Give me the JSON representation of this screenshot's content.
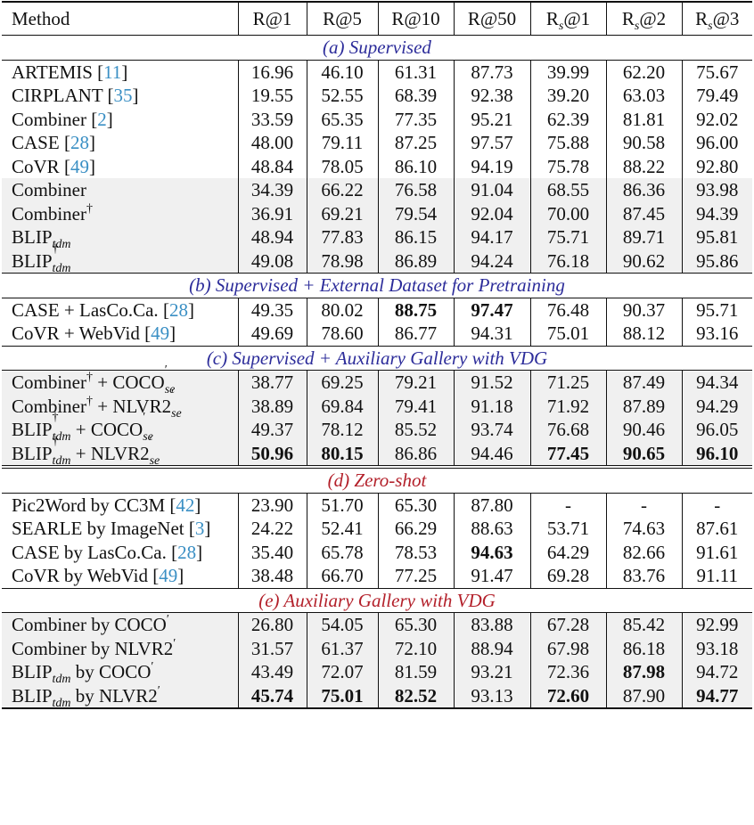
{
  "headers": [
    "Method",
    "R@1",
    "R@5",
    "R@10",
    "R@50",
    "R",
    "R",
    "R"
  ],
  "header_subs": [
    "s",
    "s",
    "s"
  ],
  "header_tail": [
    "@1",
    "@2",
    "@3"
  ],
  "sections": [
    {
      "title": "(a) Supervised",
      "color": "#2c2c9a",
      "rows": [
        {
          "method": "ARTEMIS",
          "ref": "11",
          "values": [
            "16.96",
            "46.10",
            "61.31",
            "87.73",
            "39.99",
            "62.20",
            "75.67"
          ],
          "bold": []
        },
        {
          "method": "CIRPLANT",
          "ref": "35",
          "values": [
            "19.55",
            "52.55",
            "68.39",
            "92.38",
            "39.20",
            "63.03",
            "79.49"
          ],
          "bold": []
        },
        {
          "method": "Combiner",
          "ref": "2",
          "values": [
            "33.59",
            "65.35",
            "77.35",
            "95.21",
            "62.39",
            "81.81",
            "92.02"
          ],
          "bold": []
        },
        {
          "method": "CASE",
          "ref": "28",
          "values": [
            "48.00",
            "79.11",
            "87.25",
            "97.57",
            "75.88",
            "90.58",
            "96.00"
          ],
          "bold": []
        },
        {
          "method": "CoVR",
          "ref": "49",
          "values": [
            "48.84",
            "78.05",
            "86.10",
            "94.19",
            "75.78",
            "88.22",
            "92.80"
          ],
          "bold": []
        },
        {
          "method": "Combiner",
          "values": [
            "34.39",
            "66.22",
            "76.58",
            "91.04",
            "68.55",
            "86.36",
            "93.98"
          ],
          "bold": [],
          "shaded": true
        },
        {
          "method": "Combiner",
          "sup": "†",
          "values": [
            "36.91",
            "69.21",
            "79.54",
            "92.04",
            "70.00",
            "87.45",
            "94.39"
          ],
          "bold": [],
          "shaded": true
        },
        {
          "method": "BLIP",
          "sub": "tdm",
          "values": [
            "48.94",
            "77.83",
            "86.15",
            "94.17",
            "75.71",
            "89.71",
            "95.81"
          ],
          "bold": [],
          "shaded": true
        },
        {
          "method": "BLIP",
          "sup": "†",
          "sub": "tdm",
          "values": [
            "49.08",
            "78.98",
            "86.89",
            "94.24",
            "76.18",
            "90.62",
            "95.86"
          ],
          "bold": [],
          "shaded": true
        }
      ]
    },
    {
      "title": "(b) Supervised + External Dataset for Pretraining",
      "color": "#2c2c9a",
      "rows": [
        {
          "method": "CASE + LasCo.Ca.",
          "ref": "28",
          "values": [
            "49.35",
            "80.02",
            "88.75",
            "97.47",
            "76.48",
            "90.37",
            "95.71"
          ],
          "bold": [
            2,
            3
          ]
        },
        {
          "method": "CoVR + WebVid",
          "ref": "49",
          "values": [
            "49.69",
            "78.60",
            "86.77",
            "94.31",
            "75.01",
            "88.12",
            "93.16"
          ],
          "bold": []
        }
      ]
    },
    {
      "title": "(c) Supervised + Auxiliary Gallery with VDG",
      "color": "#2c2c9a",
      "rows": [
        {
          "method": "Combiner",
          "sup": "†",
          "suffix": " + COCO",
          "suffix_sup": "′",
          "suffix_sub": "se",
          "values": [
            "38.77",
            "69.25",
            "79.21",
            "91.52",
            "71.25",
            "87.49",
            "94.34"
          ],
          "bold": [],
          "shaded": true
        },
        {
          "method": "Combiner",
          "sup": "†",
          "suffix": " + NLVR2",
          "suffix_sup": "′",
          "suffix_sub": "se",
          "values": [
            "38.89",
            "69.84",
            "79.41",
            "91.18",
            "71.92",
            "87.89",
            "94.29"
          ],
          "bold": [],
          "shaded": true
        },
        {
          "method": "BLIP",
          "sup": "†",
          "sub": "tdm",
          "suffix": " + COCO",
          "suffix_sup": "′",
          "suffix_sub": "se",
          "values": [
            "49.37",
            "78.12",
            "85.52",
            "93.74",
            "76.68",
            "90.46",
            "96.05"
          ],
          "bold": [],
          "shaded": true
        },
        {
          "method": "BLIP",
          "sup": "†",
          "sub": "tdm",
          "suffix": " + NLVR2",
          "suffix_sup": "′",
          "suffix_sub": "se",
          "values": [
            "50.96",
            "80.15",
            "86.86",
            "94.46",
            "77.45",
            "90.65",
            "96.10"
          ],
          "bold": [
            0,
            1,
            4,
            5,
            6
          ],
          "shaded": true
        }
      ]
    },
    {
      "title": "(d) Zero-shot",
      "color": "#b3202a",
      "rows": [
        {
          "method": "Pic2Word by CC3M",
          "ref": "42",
          "values": [
            "23.90",
            "51.70",
            "65.30",
            "87.80",
            "-",
            "-",
            "-"
          ],
          "bold": []
        },
        {
          "method": "SEARLE by ImageNet",
          "ref": "3",
          "values": [
            "24.22",
            "52.41",
            "66.29",
            "88.63",
            "53.71",
            "74.63",
            "87.61"
          ],
          "bold": []
        },
        {
          "method": "CASE by LasCo.Ca.",
          "ref": "28",
          "values": [
            "35.40",
            "65.78",
            "78.53",
            "94.63",
            "64.29",
            "82.66",
            "91.61"
          ],
          "bold": [
            3
          ]
        },
        {
          "method": "CoVR by WebVid",
          "ref": "49",
          "values": [
            "38.48",
            "66.70",
            "77.25",
            "91.47",
            "69.28",
            "83.76",
            "91.11"
          ],
          "bold": []
        }
      ]
    },
    {
      "title": "(e) Auxiliary Gallery with VDG",
      "color": "#b3202a",
      "rows": [
        {
          "method": "Combiner by COCO",
          "msup": "′",
          "values": [
            "26.80",
            "54.05",
            "65.30",
            "83.88",
            "67.28",
            "85.42",
            "92.99"
          ],
          "bold": [],
          "shaded": true
        },
        {
          "method": "Combiner by NLVR2",
          "msup": "′",
          "values": [
            "31.57",
            "61.37",
            "72.10",
            "88.94",
            "67.98",
            "86.18",
            "93.18"
          ],
          "bold": [],
          "shaded": true
        },
        {
          "method": "BLIP",
          "sub": "tdm",
          "suffix": " by COCO",
          "suffix_sup": "′",
          "values": [
            "43.49",
            "72.07",
            "81.59",
            "93.21",
            "72.36",
            "87.98",
            "94.72"
          ],
          "bold": [
            5
          ],
          "shaded": true
        },
        {
          "method": "BLIP",
          "sub": "tdm",
          "suffix": " by NLVR2",
          "suffix_sup": "′",
          "values": [
            "45.74",
            "75.01",
            "82.52",
            "93.13",
            "72.60",
            "87.90",
            "94.77"
          ],
          "bold": [
            0,
            1,
            2,
            4,
            6
          ],
          "shaded": true
        }
      ]
    }
  ]
}
